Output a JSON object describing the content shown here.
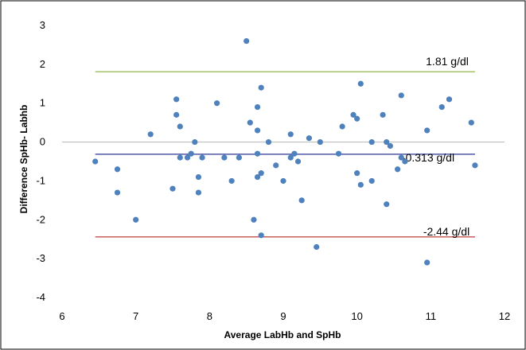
{
  "colors": {
    "background": "#ffffff",
    "border": "#000000",
    "point": "#4F81BD",
    "zero_line": "#BFBFBF",
    "upper_line": "#9BBB59",
    "mean_line": "#4F5AA8",
    "lower_line": "#C0504D"
  },
  "chart_data": {
    "type": "scatter",
    "title": "",
    "xlabel": "Average LabHb and SpHb",
    "ylabel": "Difference SpHb- Labhb",
    "xlim": [
      6,
      12
    ],
    "ylim": [
      -4,
      3
    ],
    "xticks": [
      "6",
      "7",
      "8",
      "9",
      "10",
      "11",
      "12"
    ],
    "yticks": [
      "-4",
      "-3",
      "-2",
      "-1",
      "0",
      "1",
      "2",
      "3"
    ],
    "grid": false,
    "legend": "none",
    "reference_lines": [
      {
        "label": "1.81 g/dl",
        "y": 1.81,
        "x_from": 6.45,
        "x_to": 11.6,
        "color": "#9BBB59"
      },
      {
        "label": "-0.313 g/dl",
        "y": -0.313,
        "x_from": 6.45,
        "x_to": 11.6,
        "color": "#4F5AA8"
      },
      {
        "label": "-2.44 g/dl",
        "y": -2.44,
        "x_from": 6.45,
        "x_to": 11.6,
        "color": "#C0504D"
      }
    ],
    "points": [
      {
        "x": 6.45,
        "y": -0.5
      },
      {
        "x": 6.75,
        "y": -0.7
      },
      {
        "x": 6.75,
        "y": -1.3
      },
      {
        "x": 7.0,
        "y": -2.0
      },
      {
        "x": 7.2,
        "y": 0.2
      },
      {
        "x": 7.5,
        "y": -1.2
      },
      {
        "x": 7.55,
        "y": 1.1
      },
      {
        "x": 7.55,
        "y": 0.7
      },
      {
        "x": 7.6,
        "y": 0.4
      },
      {
        "x": 7.6,
        "y": -0.4
      },
      {
        "x": 7.7,
        "y": -0.4
      },
      {
        "x": 7.75,
        "y": -0.3
      },
      {
        "x": 7.8,
        "y": 0.0
      },
      {
        "x": 7.85,
        "y": -0.9
      },
      {
        "x": 7.85,
        "y": -1.3
      },
      {
        "x": 7.9,
        "y": -0.4
      },
      {
        "x": 8.1,
        "y": 1.0
      },
      {
        "x": 8.2,
        "y": -0.4
      },
      {
        "x": 8.3,
        "y": -1.0
      },
      {
        "x": 8.4,
        "y": -0.4
      },
      {
        "x": 8.5,
        "y": 2.6
      },
      {
        "x": 8.55,
        "y": 0.5
      },
      {
        "x": 8.6,
        "y": -2.0
      },
      {
        "x": 8.65,
        "y": 0.9
      },
      {
        "x": 8.65,
        "y": 0.3
      },
      {
        "x": 8.65,
        "y": -0.3
      },
      {
        "x": 8.65,
        "y": -0.9
      },
      {
        "x": 8.7,
        "y": 1.4
      },
      {
        "x": 8.7,
        "y": -0.8
      },
      {
        "x": 8.7,
        "y": -2.4
      },
      {
        "x": 8.8,
        "y": 0.0
      },
      {
        "x": 8.9,
        "y": -0.6
      },
      {
        "x": 9.0,
        "y": -1.0
      },
      {
        "x": 9.1,
        "y": 0.2
      },
      {
        "x": 9.1,
        "y": -0.4
      },
      {
        "x": 9.15,
        "y": -0.3
      },
      {
        "x": 9.2,
        "y": -0.5
      },
      {
        "x": 9.25,
        "y": -1.5
      },
      {
        "x": 9.35,
        "y": 0.1
      },
      {
        "x": 9.45,
        "y": -2.7
      },
      {
        "x": 9.5,
        "y": 0.0
      },
      {
        "x": 9.75,
        "y": -0.3
      },
      {
        "x": 9.8,
        "y": 0.4
      },
      {
        "x": 9.95,
        "y": 0.7
      },
      {
        "x": 10.0,
        "y": 0.6
      },
      {
        "x": 10.0,
        "y": -0.8
      },
      {
        "x": 10.05,
        "y": 1.5
      },
      {
        "x": 10.05,
        "y": -1.1
      },
      {
        "x": 10.2,
        "y": 0.0
      },
      {
        "x": 10.2,
        "y": -1.0
      },
      {
        "x": 10.35,
        "y": 0.7
      },
      {
        "x": 10.4,
        "y": 0.0
      },
      {
        "x": 10.4,
        "y": -1.6
      },
      {
        "x": 10.45,
        "y": -0.1
      },
      {
        "x": 10.55,
        "y": -0.7
      },
      {
        "x": 10.6,
        "y": 1.2
      },
      {
        "x": 10.6,
        "y": -0.4
      },
      {
        "x": 10.65,
        "y": -0.5
      },
      {
        "x": 10.95,
        "y": 0.3
      },
      {
        "x": 10.95,
        "y": -3.1
      },
      {
        "x": 11.15,
        "y": 0.9
      },
      {
        "x": 11.25,
        "y": 1.1
      },
      {
        "x": 11.55,
        "y": 0.5
      },
      {
        "x": 11.6,
        "y": -0.6
      }
    ]
  }
}
